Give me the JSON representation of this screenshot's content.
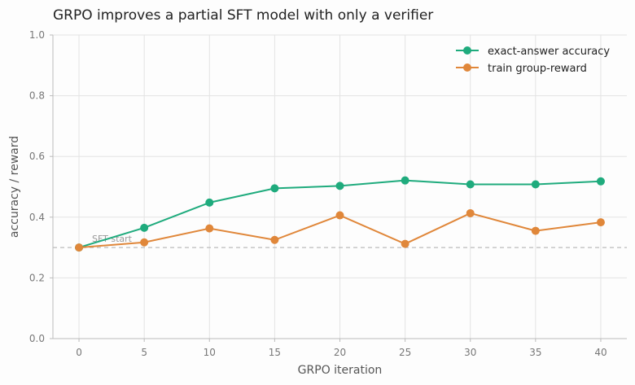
{
  "chart_data": {
    "type": "line",
    "title": "GRPO improves a partial SFT model with only a verifier",
    "xlabel": "GRPO iteration",
    "ylabel": "accuracy / reward",
    "x": [
      0,
      5,
      10,
      15,
      20,
      25,
      30,
      35,
      40
    ],
    "xlim": [
      -2,
      42
    ],
    "ylim": [
      0,
      1.0
    ],
    "xticks": [
      "0",
      "5",
      "10",
      "15",
      "20",
      "25",
      "30",
      "35",
      "40"
    ],
    "yticks": [
      "0.0",
      "0.2",
      "0.4",
      "0.6",
      "0.8",
      "1.0"
    ],
    "grid": true,
    "legend_position": "top-right",
    "series": [
      {
        "name": "exact-answer accuracy",
        "color": "#1fab7d",
        "values": [
          0.3,
          0.365,
          0.448,
          0.495,
          0.503,
          0.521,
          0.508,
          0.508,
          0.518
        ]
      },
      {
        "name": "train group-reward",
        "color": "#e0873a",
        "values": [
          0.3,
          0.317,
          0.363,
          0.325,
          0.406,
          0.312,
          0.413,
          0.355,
          0.383
        ]
      }
    ],
    "reference_line": {
      "y": 0.3,
      "label": "SFT start",
      "color": "#bbbbbb"
    }
  }
}
